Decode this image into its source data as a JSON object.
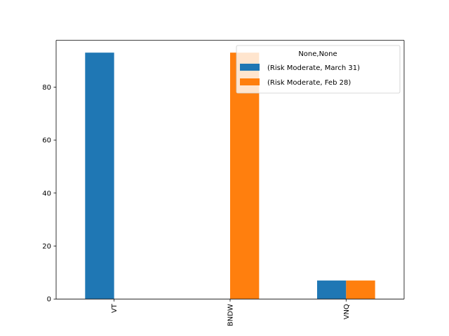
{
  "chart_data": {
    "type": "bar",
    "categories": [
      "VT",
      "BNDW",
      "VNQ"
    ],
    "series": [
      {
        "name": "(Risk Moderate, March 31)",
        "values": [
          93,
          0,
          7
        ],
        "color": "#1f77b4"
      },
      {
        "name": "(Risk Moderate, Feb 28)",
        "values": [
          0,
          93,
          7
        ],
        "color": "#ff7f0e"
      }
    ],
    "title": "",
    "xlabel": "",
    "ylabel": "",
    "ylim": [
      0,
      97.65
    ],
    "yticks": [
      0,
      20,
      40,
      60,
      80
    ],
    "grid": false,
    "legend": {
      "title": "None,None",
      "placement": "top-right"
    }
  }
}
